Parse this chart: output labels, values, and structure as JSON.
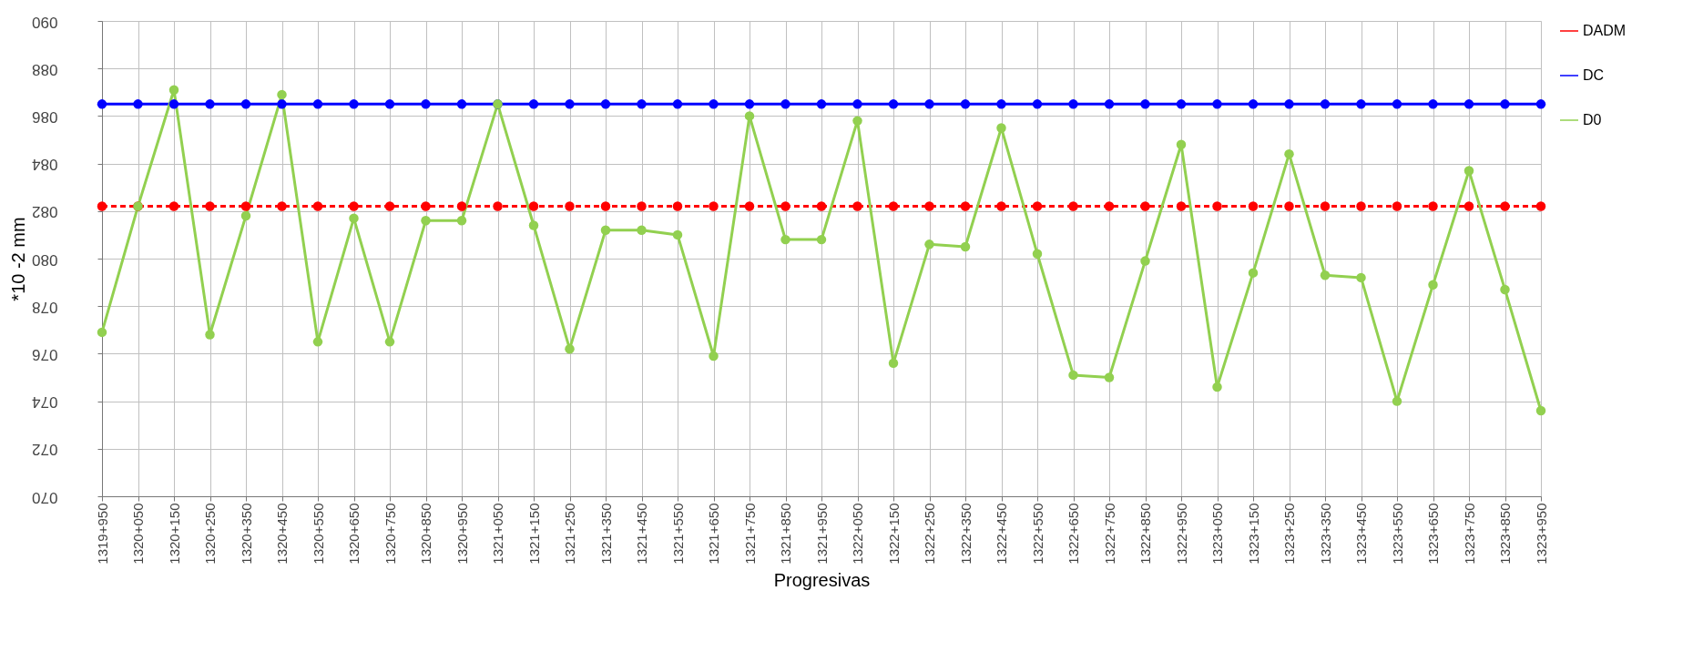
{
  "chart_data": {
    "type": "line",
    "xlabel": "Progresivas",
    "ylabel": "*10 -2 mm",
    "categories": [
      "1319+950",
      "1320+050",
      "1320+150",
      "1320+250",
      "1320+350",
      "1320+450",
      "1320+550",
      "1320+650",
      "1320+750",
      "1320+850",
      "1320+950",
      "1321+050",
      "1321+150",
      "1321+250",
      "1321+350",
      "1321+450",
      "1321+550",
      "1321+650",
      "1321+750",
      "1321+850",
      "1321+950",
      "1322+050",
      "1322+150",
      "1322+250",
      "1322+350",
      "1322+450",
      "1322+550",
      "1322+650",
      "1322+750",
      "1322+850",
      "1322+950",
      "1323+050",
      "1323+150",
      "1323+250",
      "1323+350",
      "1323+450",
      "1323+550",
      "1323+650",
      "1323+750",
      "1323+850",
      "1323+950"
    ],
    "series": [
      {
        "name": "DADM",
        "color": "#ff0000",
        "line_style": "dashed",
        "values": [
          82.2,
          82.2,
          82.2,
          82.2,
          82.2,
          82.2,
          82.2,
          82.2,
          82.2,
          82.2,
          82.2,
          82.2,
          82.2,
          82.2,
          82.2,
          82.2,
          82.2,
          82.2,
          82.2,
          82.2,
          82.2,
          82.2,
          82.2,
          82.2,
          82.2,
          82.2,
          82.2,
          82.2,
          82.2,
          82.2,
          82.2,
          82.2,
          82.2,
          82.2,
          82.2,
          82.2,
          82.2,
          82.2,
          82.2,
          82.2,
          82.2
        ]
      },
      {
        "name": "DC",
        "color": "#0000ff",
        "line_style": "solid",
        "values": [
          86.5,
          86.5,
          86.5,
          86.5,
          86.5,
          86.5,
          86.5,
          86.5,
          86.5,
          86.5,
          86.5,
          86.5,
          86.5,
          86.5,
          86.5,
          86.5,
          86.5,
          86.5,
          86.5,
          86.5,
          86.5,
          86.5,
          86.5,
          86.5,
          86.5,
          86.5,
          86.5,
          86.5,
          86.5,
          86.5,
          86.5,
          86.5,
          86.5,
          86.5,
          86.5,
          86.5,
          86.5,
          86.5,
          86.5,
          86.5,
          86.5
        ]
      },
      {
        "name": "D0",
        "color": "#92d050",
        "line_style": "solid",
        "values": [
          76.9,
          82.2,
          87.1,
          76.8,
          81.8,
          86.9,
          76.5,
          81.7,
          76.5,
          81.6,
          81.6,
          86.5,
          81.4,
          76.2,
          81.2,
          81.2,
          81.0,
          75.9,
          86.0,
          80.8,
          80.8,
          85.8,
          75.6,
          80.6,
          80.5,
          85.5,
          80.2,
          75.1,
          75.0,
          79.9,
          84.8,
          74.6,
          79.4,
          84.4,
          79.3,
          79.2,
          74.0,
          78.9,
          83.7,
          78.7,
          73.6
        ]
      }
    ],
    "ylim": [
      70,
      90
    ],
    "yticks": [
      {
        "value": 70,
        "label": "070"
      },
      {
        "value": 72,
        "label": "072"
      },
      {
        "value": 74,
        "label": "074"
      },
      {
        "value": 76,
        "label": "076"
      },
      {
        "value": 78,
        "label": "078"
      },
      {
        "value": 80,
        "label": "080"
      },
      {
        "value": 82,
        "label": "082"
      },
      {
        "value": 84,
        "label": "084"
      },
      {
        "value": 86,
        "label": "086"
      },
      {
        "value": 88,
        "label": "088"
      },
      {
        "value": 90,
        "label": "090"
      }
    ],
    "grid": true,
    "legend": "right",
    "marker": "circle"
  }
}
